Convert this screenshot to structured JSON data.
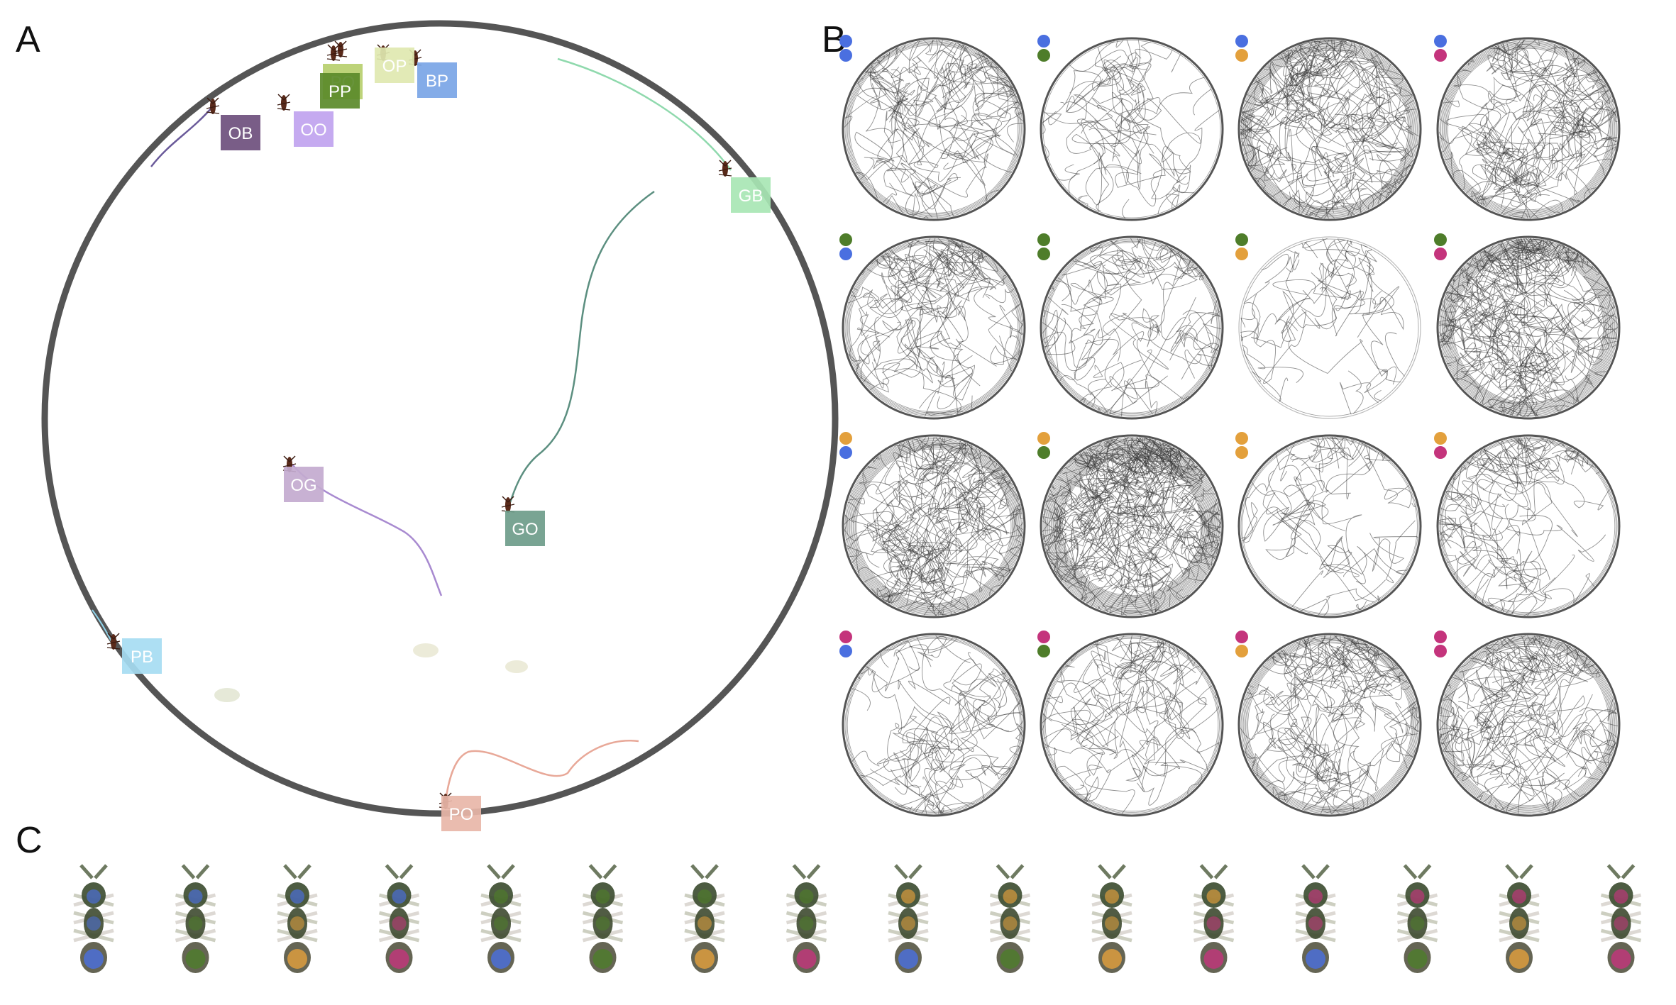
{
  "figure": {
    "panel_letters": [
      "A",
      "B",
      "C"
    ]
  },
  "colors": {
    "B": "#4a6fe0",
    "G": "#4e7d2a",
    "O": "#e3a03c",
    "P": "#c4347c",
    "arena_rim": "#555555",
    "trace": "#333333"
  },
  "panel_a": {
    "ant_tags": [
      {
        "label": "PO",
        "color": "#b7cf6e"
      },
      {
        "label": "PP",
        "color": "#5b8a2a"
      },
      {
        "label": "OP",
        "color": "#dfe8b0"
      },
      {
        "label": "BP",
        "color": "#7aa5e6"
      },
      {
        "label": "OB",
        "color": "#6e4f7d"
      },
      {
        "label": "OO",
        "color": "#c0a3ef"
      },
      {
        "label": "GB",
        "color": "#a8e6b4"
      },
      {
        "label": "OG",
        "color": "#c3aacf"
      },
      {
        "label": "GO",
        "color": "#6e9c8a"
      },
      {
        "label": "PB",
        "color": "#a6dcf2"
      },
      {
        "label": "PO",
        "color": "#e8b6a8"
      }
    ]
  },
  "panel_b": {
    "row_markers": [
      "B",
      "G",
      "O",
      "P"
    ],
    "col_markers": [
      "B",
      "G",
      "O",
      "P"
    ],
    "densities": [
      [
        0.45,
        0.1,
        1.0,
        0.8
      ],
      [
        0.45,
        0.35,
        0.1,
        1.3
      ],
      [
        1.1,
        1.8,
        0.15,
        0.3
      ],
      [
        0.3,
        0.3,
        0.7,
        0.8
      ]
    ]
  },
  "panel_c": {
    "ants": [
      [
        "B",
        "B",
        "B"
      ],
      [
        "B",
        "G",
        "G"
      ],
      [
        "B",
        "O",
        "O"
      ],
      [
        "B",
        "P",
        "P"
      ],
      [
        "G",
        "G",
        "B"
      ],
      [
        "G",
        "G",
        "G"
      ],
      [
        "G",
        "O",
        "O"
      ],
      [
        "G",
        "G",
        "P"
      ],
      [
        "O",
        "O",
        "B"
      ],
      [
        "O",
        "O",
        "G"
      ],
      [
        "O",
        "O",
        "O"
      ],
      [
        "O",
        "P",
        "P"
      ],
      [
        "P",
        "P",
        "B"
      ],
      [
        "P",
        "G",
        "G"
      ],
      [
        "P",
        "O",
        "O"
      ],
      [
        "P",
        "P",
        "P"
      ]
    ]
  }
}
